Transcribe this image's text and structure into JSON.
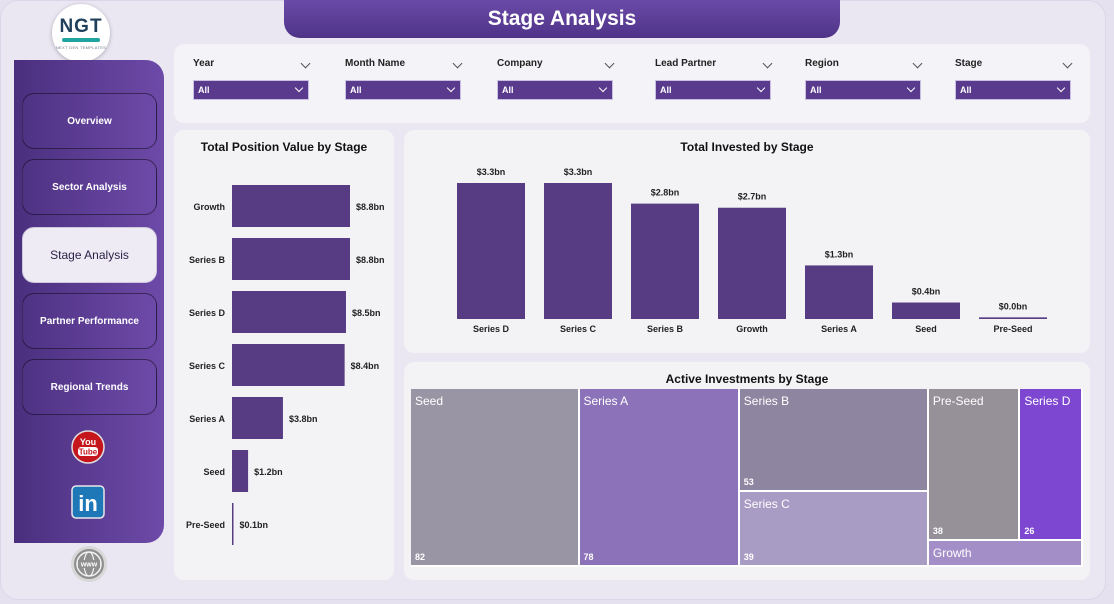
{
  "header": {
    "title": "Stage Analysis"
  },
  "logo": {
    "mark": "NGT",
    "subtitle": "NEXT GEN TEMPLATES"
  },
  "nav": {
    "items": [
      {
        "label": "Overview",
        "active": false
      },
      {
        "label": "Sector Analysis",
        "active": false
      },
      {
        "label": "Stage Analysis",
        "active": true
      },
      {
        "label": "Partner Performance",
        "active": false
      },
      {
        "label": "Regional Trends",
        "active": false
      }
    ]
  },
  "social": {
    "youtube_text": "You\nTube",
    "linkedin_text": "in",
    "web_text": "www"
  },
  "filters": [
    {
      "label": "Year",
      "value": "All"
    },
    {
      "label": "Month Name",
      "value": "All"
    },
    {
      "label": "Company",
      "value": "All"
    },
    {
      "label": "Lead Partner",
      "value": "All"
    },
    {
      "label": "Region",
      "value": "All"
    },
    {
      "label": "Stage",
      "value": "All"
    }
  ],
  "colors": {
    "bar": "#573c84",
    "accent": "#5a3a8c",
    "background": "#eae6f2"
  },
  "chart_data": [
    {
      "type": "bar",
      "orientation": "horizontal",
      "title": "Total Position Value by Stage",
      "categories": [
        "Growth",
        "Series B",
        "Series D",
        "Series C",
        "Series A",
        "Seed",
        "Pre-Seed"
      ],
      "values": [
        8.8,
        8.8,
        8.5,
        8.4,
        3.8,
        1.2,
        0.1
      ],
      "value_labels": [
        "$8.8bn",
        "$8.8bn",
        "$8.5bn",
        "$8.4bn",
        "$3.8bn",
        "$1.2bn",
        "$0.1bn"
      ],
      "unit": "bn USD"
    },
    {
      "type": "bar",
      "orientation": "vertical",
      "title": "Total Invested by Stage",
      "categories": [
        "Series D",
        "Series C",
        "Series B",
        "Growth",
        "Series A",
        "Seed",
        "Pre-Seed"
      ],
      "values": [
        3.3,
        3.3,
        2.8,
        2.7,
        1.3,
        0.4,
        0.04
      ],
      "value_labels": [
        "$3.3bn",
        "$3.3bn",
        "$2.8bn",
        "$2.7bn",
        "$1.3bn",
        "$0.4bn",
        "$0.0bn"
      ],
      "unit": "bn USD"
    },
    {
      "type": "treemap",
      "title": "Active Investments by Stage",
      "items": [
        {
          "name": "Seed",
          "value": 82,
          "label": "82",
          "color": "#9a95a5"
        },
        {
          "name": "Series A",
          "value": 78,
          "label": "78",
          "color": "#8c72b8"
        },
        {
          "name": "Series B",
          "value": 53,
          "label": "53",
          "color": "#8e86a0"
        },
        {
          "name": "Series C",
          "value": 39,
          "label": "39",
          "color": "#a99cc4"
        },
        {
          "name": "Pre-Seed",
          "value": 38,
          "label": "38",
          "color": "#969099"
        },
        {
          "name": "Series D",
          "value": 26,
          "label": "26",
          "color": "#7e47d1"
        },
        {
          "name": "Growth",
          "value": 11,
          "label": "",
          "color": "#a48ec8"
        }
      ]
    }
  ]
}
